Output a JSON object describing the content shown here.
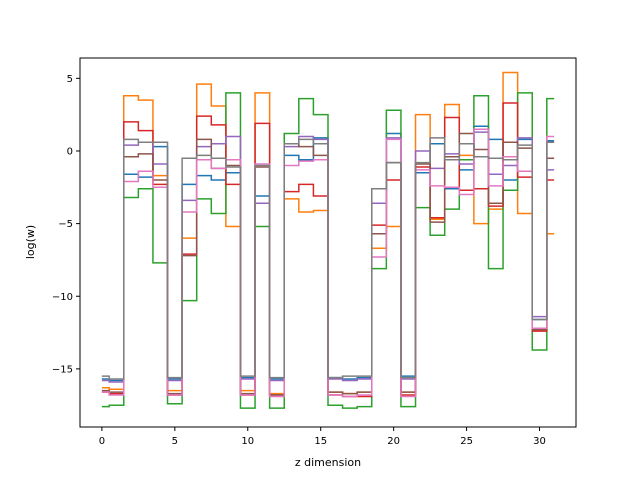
{
  "chart_data": {
    "type": "line",
    "drawstyle": "steps-mid",
    "title": "",
    "xlabel": "z dimension",
    "ylabel": "log(w)",
    "xlim": [
      -1.5,
      32.5
    ],
    "ylim": [
      -19,
      6.4
    ],
    "xticks": [
      0,
      5,
      10,
      15,
      20,
      25,
      30
    ],
    "yticks": [
      -15,
      -10,
      -5,
      0,
      5
    ],
    "grid": false,
    "legend": "none",
    "x": [
      0,
      1,
      2,
      3,
      4,
      5,
      6,
      7,
      8,
      9,
      10,
      11,
      12,
      13,
      14,
      15,
      16,
      17,
      18,
      19,
      20,
      21,
      22,
      23,
      24,
      25,
      26,
      27,
      28,
      29,
      30,
      31
    ],
    "series": [
      {
        "color": "#1f77b4",
        "values": [
          -15.7,
          -15.8,
          -1.6,
          -1.8,
          0.3,
          -15.7,
          -2.3,
          -1.7,
          -2.0,
          -1.5,
          -15.6,
          -3.1,
          -15.7,
          -0.3,
          -0.6,
          0.9,
          -15.6,
          -15.7,
          -15.6,
          -2.6,
          1.2,
          -15.5,
          -1.5,
          0.5,
          -2.6,
          -1.3,
          1.7,
          0.8,
          -2.0,
          0.8,
          -11.6,
          0.7
        ]
      },
      {
        "color": "#ff7f0e",
        "values": [
          -16.3,
          -16.4,
          3.8,
          3.5,
          -1.7,
          -16.5,
          -6.0,
          4.6,
          3.1,
          -5.2,
          -16.5,
          4.0,
          -16.7,
          -3.3,
          -4.2,
          -4.1,
          -16.6,
          -16.7,
          -16.6,
          -6.7,
          -5.2,
          -16.6,
          2.5,
          -4.7,
          3.2,
          -0.3,
          -5.0,
          -4.0,
          5.4,
          -4.3,
          -12.3,
          -5.7
        ]
      },
      {
        "color": "#2ca02c",
        "values": [
          -17.6,
          -17.5,
          -3.2,
          -2.6,
          -7.7,
          -17.4,
          -10.3,
          -3.3,
          -4.3,
          4.0,
          -17.7,
          -5.2,
          -17.7,
          1.2,
          3.6,
          2.5,
          -17.5,
          -17.7,
          -17.6,
          -8.1,
          2.8,
          -17.6,
          -3.9,
          -5.8,
          -4.0,
          -0.6,
          3.8,
          -8.1,
          -2.7,
          4.0,
          -13.7,
          3.6
        ]
      },
      {
        "color": "#d62728",
        "values": [
          -16.6,
          -16.7,
          2.0,
          1.4,
          -2.3,
          -16.8,
          -7.1,
          2.4,
          1.8,
          -2.3,
          -16.8,
          1.9,
          -16.8,
          -2.8,
          -2.3,
          -3.1,
          -16.8,
          -16.9,
          -16.9,
          -5.1,
          -2.0,
          -16.8,
          -1.1,
          -4.6,
          2.3,
          -2.7,
          -2.6,
          -3.8,
          3.3,
          -1.8,
          -12.4,
          -2.0
        ]
      },
      {
        "color": "#9467bd",
        "values": [
          -15.8,
          -15.9,
          0.4,
          0.6,
          -0.9,
          -15.8,
          -3.4,
          0.3,
          0.5,
          1.0,
          -15.7,
          -3.6,
          -15.8,
          0.3,
          1.0,
          0.8,
          -15.7,
          -15.8,
          -15.7,
          -3.6,
          0.9,
          -15.7,
          0.0,
          -1.2,
          -0.2,
          -0.9,
          1.3,
          -1.6,
          -1.0,
          0.9,
          -11.4,
          -1.3
        ]
      },
      {
        "color": "#8c564b",
        "values": [
          -16.5,
          -16.6,
          -0.4,
          -0.2,
          -2.0,
          -16.7,
          -7.2,
          0.8,
          -1.2,
          -1.0,
          -16.7,
          -1.1,
          -16.8,
          0.5,
          0.3,
          -0.3,
          -16.6,
          -16.7,
          -16.6,
          -5.7,
          -0.8,
          -16.6,
          -0.9,
          -4.9,
          -0.4,
          1.2,
          0.1,
          -3.6,
          0.6,
          0.2,
          -12.3,
          -0.5
        ]
      },
      {
        "color": "#e377c2",
        "values": [
          -16.6,
          -16.8,
          -2.1,
          -1.4,
          -2.5,
          -16.8,
          -4.2,
          -0.6,
          -1.2,
          -0.6,
          -16.8,
          -0.9,
          -16.9,
          -1.0,
          -0.7,
          -0.6,
          -16.8,
          -16.9,
          -16.8,
          -7.3,
          0.8,
          -16.9,
          -1.3,
          -2.4,
          -2.5,
          -3.0,
          1.5,
          -2.4,
          -0.4,
          -1.4,
          -12.2,
          1.0
        ]
      },
      {
        "color": "#7f7f7f",
        "values": [
          -15.5,
          -15.7,
          0.8,
          0.6,
          0.6,
          -15.6,
          -0.5,
          -0.3,
          -0.5,
          -1.1,
          -15.5,
          -1.0,
          -15.6,
          0.5,
          0.8,
          0.5,
          -15.6,
          -15.5,
          -15.5,
          -2.6,
          -0.8,
          -15.6,
          -0.8,
          0.9,
          -0.6,
          0.5,
          -0.4,
          -0.5,
          -0.6,
          0.4,
          -11.6,
          0.6
        ]
      }
    ]
  }
}
